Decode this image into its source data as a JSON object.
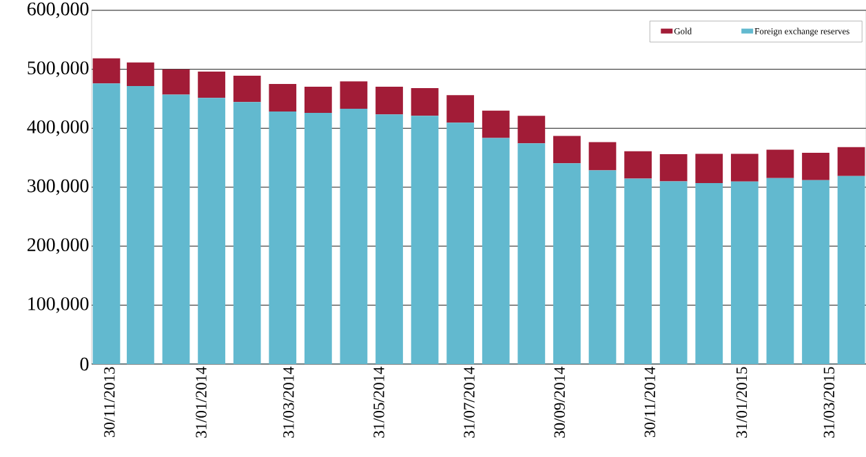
{
  "chart_data": {
    "type": "bar",
    "stacked": true,
    "x": [
      "2013-11-28",
      "2013-12-21",
      "2014-01-14",
      "2014-02-07",
      "2014-03-03",
      "2014-03-27",
      "2014-04-20",
      "2014-05-14",
      "2014-06-07",
      "2014-07-01",
      "2014-07-25",
      "2014-08-18",
      "2014-09-11",
      "2014-10-05",
      "2014-10-29",
      "2014-11-22",
      "2014-12-16",
      "2015-01-09",
      "2015-02-02",
      "2015-02-26",
      "2015-03-22",
      "2015-04-15"
    ],
    "series": [
      {
        "name": "Foreign exchange reserves",
        "color": "#62b9cf",
        "values": [
          476000,
          471500,
          457000,
          451500,
          444500,
          428500,
          426000,
          433000,
          423500,
          421000,
          409500,
          383500,
          374500,
          340500,
          328500,
          314500,
          310000,
          307000,
          309500,
          315500,
          312000,
          319000
        ]
      },
      {
        "name": "Gold",
        "color": "#a21c37",
        "values": [
          42500,
          40000,
          43000,
          44500,
          44500,
          46500,
          44500,
          46500,
          47000,
          47000,
          46500,
          46500,
          46500,
          46500,
          48000,
          46500,
          46000,
          49500,
          47000,
          48000,
          46500,
          49000
        ]
      }
    ],
    "xlim": [
      "2013-11-18",
      "2015-04-25"
    ],
    "xticks": [
      {
        "value": "2013-11-30",
        "label": "30/11/2013"
      },
      {
        "value": "2014-01-31",
        "label": "31/01/2014"
      },
      {
        "value": "2014-03-31",
        "label": "31/03/2014"
      },
      {
        "value": "2014-05-31",
        "label": "31/05/2014"
      },
      {
        "value": "2014-07-31",
        "label": "31/07/2014"
      },
      {
        "value": "2014-09-30",
        "label": "30/09/2014"
      },
      {
        "value": "2014-11-30",
        "label": "30/11/2014"
      },
      {
        "value": "2015-01-31",
        "label": "31/01/2015"
      },
      {
        "value": "2015-03-31",
        "label": "31/03/2015"
      }
    ],
    "ylim": [
      0,
      600000
    ],
    "yticks": [
      0,
      {
        "value": 100000,
        "label": "100,000"
      },
      {
        "value": 200000,
        "label": "200,000"
      },
      {
        "value": 300000,
        "label": "300,000"
      },
      {
        "value": 400000,
        "label": "400,000"
      },
      {
        "value": 500000,
        "label": "500,000"
      },
      {
        "value": 600000,
        "label": "600,000"
      }
    ],
    "grid": "y",
    "legend": "top right"
  }
}
